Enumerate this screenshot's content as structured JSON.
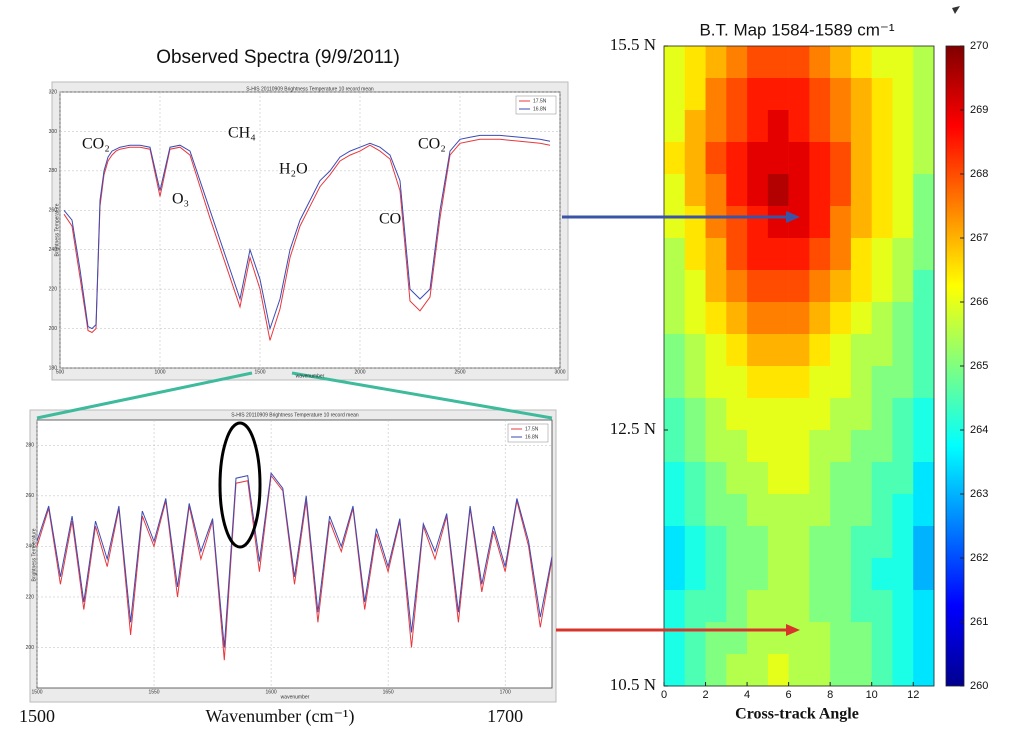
{
  "chart_data": [
    {
      "type": "line",
      "title": "Observed Spectra (9/9/2011)",
      "subtitle": "S-HIS 20110909 Brightness Temperature 10 record mean",
      "x_label": "wavenumber",
      "y_label": "Brightness Temperature",
      "x": [
        520,
        560,
        600,
        640,
        660,
        680,
        700,
        720,
        740,
        760,
        780,
        800,
        850,
        900,
        950,
        1000,
        1050,
        1100,
        1150,
        1200,
        1250,
        1300,
        1350,
        1400,
        1450,
        1500,
        1550,
        1600,
        1650,
        1700,
        1750,
        1800,
        1850,
        1900,
        1950,
        2000,
        2050,
        2100,
        2150,
        2200,
        2250,
        2300,
        2350,
        2400,
        2450,
        2500,
        2550,
        2600,
        2700,
        2800,
        2900,
        2950
      ],
      "series": [
        {
          "name": "17.5N",
          "color": "#e8383d",
          "values": [
            258,
            252,
            226,
            199,
            198,
            200,
            262,
            278,
            285,
            288,
            290,
            291,
            292,
            292,
            291,
            267,
            291,
            292,
            288,
            272,
            256,
            241,
            226,
            211,
            236,
            220,
            194,
            210,
            236,
            252,
            262,
            272,
            278,
            285,
            288,
            290,
            293,
            290,
            286,
            270,
            214,
            209,
            216,
            256,
            288,
            294,
            295,
            296,
            296,
            295,
            294,
            293
          ]
        },
        {
          "name": "16.8N",
          "color": "#3a4bb5",
          "values": [
            260,
            255,
            230,
            201,
            200,
            202,
            265,
            280,
            287,
            290,
            291,
            292,
            293,
            293,
            292,
            270,
            292,
            293,
            290,
            275,
            260,
            245,
            230,
            215,
            240,
            225,
            200,
            215,
            240,
            255,
            265,
            275,
            280,
            287,
            290,
            292,
            294,
            292,
            288,
            275,
            220,
            215,
            220,
            260,
            290,
            296,
            297,
            298,
            298,
            297,
            296,
            295
          ]
        }
      ],
      "xlim": [
        500,
        3000
      ],
      "xticks": [
        500,
        1000,
        1500,
        2000,
        2500,
        3000
      ],
      "ylim": [
        180,
        320
      ],
      "yticks": [
        180,
        200,
        220,
        240,
        260,
        280,
        300,
        320
      ],
      "grid": true,
      "legend": "upper right",
      "annotations": [
        "CO₂",
        "O₃",
        "CH₄",
        "H₂O",
        "CO",
        "CO₂"
      ]
    },
    {
      "type": "line",
      "title": "S-HIS 20110909 Brightness Temperature 10 record mean",
      "x_label": "wavenumber",
      "y_label": "Brightness Temperature",
      "caption_x_label": "Wavenumber (cm⁻¹)",
      "caption_xticks": [
        1500,
        1700
      ],
      "x": [
        1500,
        1505,
        1510,
        1515,
        1520,
        1525,
        1530,
        1535,
        1540,
        1545,
        1550,
        1555,
        1560,
        1565,
        1570,
        1575,
        1580,
        1585,
        1590,
        1595,
        1600,
        1605,
        1610,
        1615,
        1620,
        1625,
        1630,
        1635,
        1640,
        1645,
        1650,
        1655,
        1660,
        1665,
        1670,
        1675,
        1680,
        1685,
        1690,
        1695,
        1700,
        1705,
        1710,
        1715,
        1720
      ],
      "series": [
        {
          "name": "17.5N",
          "color": "#e8383d",
          "values": [
            240,
            255,
            225,
            250,
            215,
            248,
            232,
            255,
            205,
            252,
            240,
            258,
            220,
            256,
            235,
            250,
            195,
            265,
            266,
            230,
            268,
            262,
            225,
            258,
            210,
            250,
            238,
            255,
            215,
            245,
            230,
            250,
            200,
            248,
            235,
            252,
            210,
            255,
            222,
            246,
            230,
            258,
            240,
            208,
            235
          ]
        },
        {
          "name": "16.8N",
          "color": "#3a4bb5",
          "values": [
            242,
            256,
            228,
            252,
            218,
            250,
            235,
            256,
            210,
            254,
            242,
            259,
            224,
            257,
            238,
            251,
            200,
            267,
            268,
            234,
            269,
            263,
            228,
            260,
            214,
            252,
            240,
            256,
            218,
            247,
            232,
            251,
            206,
            249,
            238,
            253,
            214,
            256,
            225,
            248,
            232,
            259,
            242,
            212,
            236
          ]
        }
      ],
      "xlim": [
        1500,
        1720
      ],
      "xticks": [
        1500,
        1550,
        1600,
        1650,
        1700
      ],
      "ylim": [
        184,
        290
      ],
      "yticks": [
        200,
        220,
        240,
        260,
        280
      ],
      "grid": true,
      "legend": "upper right"
    },
    {
      "type": "heatmap",
      "title": "B.T. Map 1584-1589 cm⁻¹",
      "x_label": "Cross-track Angle",
      "xlim": [
        0,
        13
      ],
      "xticks": [
        0,
        2,
        4,
        6,
        8,
        10,
        12
      ],
      "ylim": [
        10.5,
        15.5
      ],
      "yticks": [
        {
          "value": 15.5,
          "label": "15.5 N"
        },
        {
          "value": 12.5,
          "label": "12.5 N"
        },
        {
          "value": 10.5,
          "label": "10.5 N"
        }
      ],
      "colormap": "jet",
      "zlim": [
        260,
        270
      ],
      "colorbar_ticks": [
        260,
        261,
        262,
        263,
        264,
        265,
        266,
        267,
        268,
        269,
        270
      ],
      "z": [
        [
          266,
          266.5,
          267,
          267.5,
          268,
          268,
          268,
          267.5,
          267,
          266.5,
          266,
          266,
          265.5
        ],
        [
          266,
          266.5,
          267.5,
          268,
          268.5,
          268.5,
          268.5,
          268,
          267.5,
          267,
          266.5,
          266,
          265.5
        ],
        [
          266,
          267,
          267.5,
          268,
          268.5,
          269,
          268.5,
          268,
          267.5,
          267,
          266.5,
          266,
          265.5
        ],
        [
          266.5,
          267,
          268,
          268.5,
          269,
          269,
          269,
          268.5,
          268,
          267,
          266.5,
          266,
          265.5
        ],
        [
          266,
          267,
          267.5,
          268.5,
          269,
          269.5,
          269,
          268.5,
          268,
          267,
          266.5,
          266,
          265
        ],
        [
          266,
          266.5,
          267.5,
          268,
          268.5,
          269,
          269,
          268.5,
          267.5,
          267,
          266.5,
          266,
          265
        ],
        [
          265.5,
          266.5,
          267,
          268,
          268.5,
          268.5,
          268.5,
          268,
          267.5,
          266.5,
          266,
          265.5,
          265
        ],
        [
          265.5,
          266,
          267,
          267.5,
          268,
          268,
          268,
          267.5,
          267,
          266.5,
          266,
          265.5,
          264.5
        ],
        [
          265.5,
          266,
          266.5,
          267,
          267.5,
          267.5,
          267.5,
          267,
          266.5,
          266,
          265.5,
          265,
          264.5
        ],
        [
          265,
          265.5,
          266,
          266.5,
          267,
          267,
          267,
          266.5,
          266,
          265.5,
          265.5,
          265,
          264.5
        ],
        [
          265,
          265.5,
          266,
          266,
          266.5,
          266.5,
          266.5,
          266,
          266,
          265.5,
          265,
          265,
          264.5
        ],
        [
          264.5,
          265,
          265.5,
          266,
          266,
          266,
          266,
          266,
          265.5,
          265.5,
          265,
          264.5,
          264
        ],
        [
          264.5,
          265,
          265.5,
          265.5,
          266,
          266,
          266,
          265.5,
          265.5,
          265,
          265,
          264.5,
          264
        ],
        [
          264,
          264.5,
          265,
          265.5,
          265.5,
          266,
          266,
          265.5,
          265,
          265,
          264.5,
          264.5,
          263.5
        ],
        [
          264,
          264.5,
          265,
          265,
          265.5,
          265.5,
          265.5,
          265.5,
          265,
          265,
          264.5,
          264,
          263.5
        ],
        [
          263.5,
          264,
          264.5,
          265,
          265,
          265.5,
          265.5,
          265,
          265,
          264.5,
          264.5,
          264,
          263
        ],
        [
          263.5,
          264,
          264.5,
          265,
          265,
          265.5,
          265.5,
          265,
          265,
          264.5,
          264,
          264,
          263
        ],
        [
          264,
          264.5,
          264.5,
          265,
          265.5,
          265.5,
          265.5,
          265,
          265,
          264.5,
          264.5,
          264,
          263.5
        ],
        [
          264,
          264.5,
          265,
          265,
          265.5,
          265.5,
          265.5,
          265.5,
          265,
          265,
          264.5,
          264,
          263.5
        ],
        [
          264,
          264.5,
          265,
          265.5,
          265.5,
          266,
          265.5,
          265.5,
          265,
          265,
          264.5,
          264,
          263.5
        ]
      ]
    }
  ]
}
